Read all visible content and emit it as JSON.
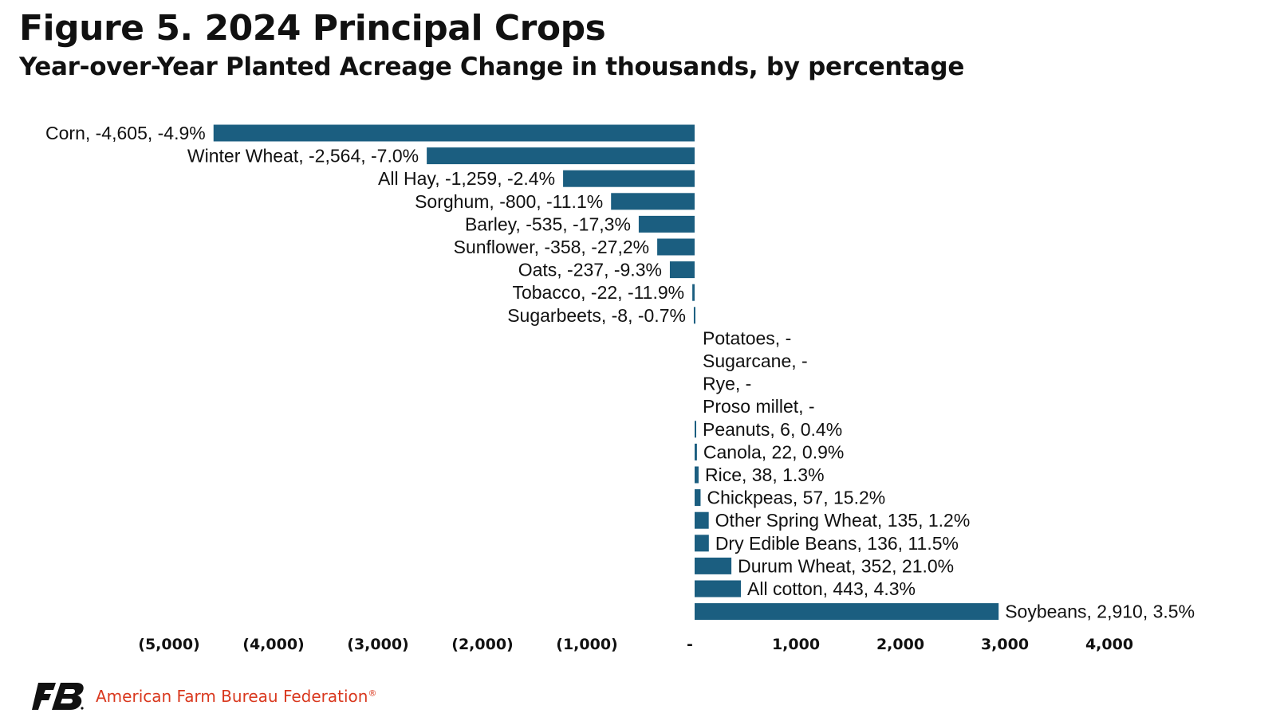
{
  "title": "Figure 5. 2024 Principal Crops",
  "subtitle": "Year-over-Year Planted Acreage Change in thousands, by percentage",
  "footer": {
    "org": "American Farm Bureau Federation",
    "registered": "®"
  },
  "colors": {
    "bar": "#1b5e80",
    "brand": "#d9381e",
    "text": "#111111"
  },
  "chart_data": {
    "type": "bar",
    "orientation": "horizontal",
    "title": "Figure 5. 2024 Principal Crops",
    "subtitle": "Year-over-Year Planted Acreage Change in thousands, by percentage",
    "xlim": [
      -5000,
      4000
    ],
    "x_ticks": [
      -5000,
      -4000,
      -3000,
      -2000,
      -1000,
      0,
      1000,
      2000,
      3000,
      4000
    ],
    "x_tick_labels": [
      "(5,000)",
      "(4,000)",
      "(3,000)",
      "(2,000)",
      "(1,000)",
      "-",
      "1,000",
      "2,000",
      "3,000",
      "4,000"
    ],
    "grid": false,
    "legend": "none",
    "categories": [
      "Corn",
      "Winter Wheat",
      "All Hay",
      "Sorghum",
      "Barley",
      "Sunflower",
      "Oats",
      "Tobacco",
      "Sugarbeets",
      "Potatoes",
      "Sugarcane",
      "Rye",
      "Proso millet",
      "Peanuts",
      "Canola",
      "Rice",
      "Chickpeas",
      "Other Spring Wheat",
      "Dry Edible Beans",
      "Durum Wheat",
      "All cotton",
      "Soybeans"
    ],
    "values": [
      -4605,
      -2564,
      -1259,
      -800,
      -535,
      -358,
      -237,
      -22,
      -8,
      0,
      0,
      0,
      0,
      6,
      22,
      38,
      57,
      135,
      136,
      352,
      443,
      2910
    ],
    "percent_change": [
      "-4.9%",
      "-7.0%",
      "-2.4%",
      "-11.1%",
      "-17,3%",
      "-27,2%",
      "-9.3%",
      "-11.9%",
      "-0.7%",
      "",
      "",
      "",
      "",
      "0.4%",
      "0.9%",
      "1.3%",
      "15.2%",
      "1.2%",
      "11.5%",
      "21.0%",
      "4.3%",
      "3.5%"
    ],
    "data_labels": [
      "Corn, -4,605, -4.9%",
      "Winter Wheat, -2,564, -7.0%",
      "All Hay, -1,259, -2.4%",
      "Sorghum, -800, -11.1%",
      "Barley, -535, -17,3%",
      "Sunflower,  -358, -27,2%",
      "Oats, -237, -9.3%",
      "Tobacco,  -22, -11.9%",
      "Sugarbeets, -8, -0.7%",
      "Potatoes,  -",
      "Sugarcane,  -",
      "Rye,  -",
      "Proso millet,  -",
      "Peanuts, 6, 0.4%",
      "Canola, 22, 0.9%",
      "Rice, 38, 1.3%",
      "Chickpeas, 57, 15.2%",
      "Other Spring Wheat, 135, 1.2%",
      "Dry Edible Beans, 136, 11.5%",
      "Durum Wheat, 352, 21.0%",
      "All cotton, 443, 4.3%",
      "Soybeans, 2,910, 3.5%"
    ]
  }
}
